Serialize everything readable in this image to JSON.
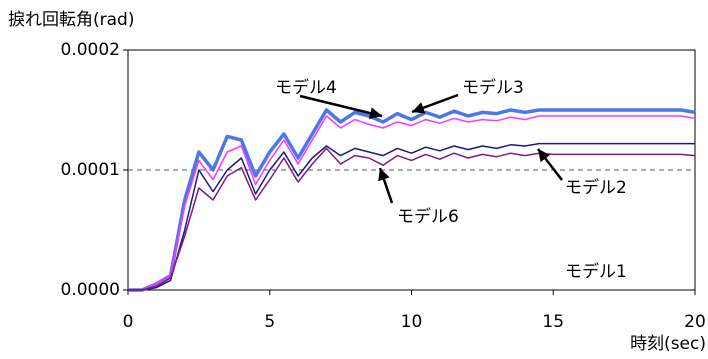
{
  "chart_data": {
    "type": "line",
    "title": "捩れ回転角(rad)",
    "x_label": "時刻(sec)",
    "x": [
      0,
      0.5,
      1,
      1.5,
      2,
      2.5,
      3,
      3.5,
      4,
      4.5,
      5,
      5.5,
      6,
      6.5,
      7,
      7.5,
      8,
      8.5,
      9,
      9.5,
      10,
      10.5,
      11,
      11.5,
      12,
      12.5,
      13,
      13.5,
      14,
      14.5,
      15,
      15.5,
      16,
      16.5,
      17,
      17.5,
      18,
      18.5,
      19,
      19.5,
      20
    ],
    "xlim": [
      0,
      20
    ],
    "xticks": [
      0,
      5,
      10,
      15,
      20
    ],
    "ylim": [
      0,
      0.0002
    ],
    "yticks": [
      {
        "value": 0,
        "label": "0.0000"
      },
      {
        "value": 0.0001,
        "label": "0.0001"
      },
      {
        "value": 0.0002,
        "label": "0.0002"
      }
    ],
    "reference_line": 0.0001,
    "series": [
      {
        "name": "モデル4",
        "color": "#4a78e8",
        "width": 3.5,
        "values": [
          0,
          0,
          5e-06,
          1.2e-05,
          7.5e-05,
          0.000115,
          0.0001,
          0.000128,
          0.000125,
          9.5e-05,
          0.000115,
          0.00013,
          0.00011,
          0.00013,
          0.00015,
          0.00014,
          0.000148,
          0.000145,
          0.00014,
          0.000147,
          0.000142,
          0.000148,
          0.000144,
          0.000149,
          0.000145,
          0.000148,
          0.000147,
          0.00015,
          0.000148,
          0.00015,
          0.00015,
          0.00015,
          0.00015,
          0.00015,
          0.00015,
          0.00015,
          0.00015,
          0.00015,
          0.00015,
          0.00015,
          0.000148
        ]
      },
      {
        "name": "モデル3",
        "color": "#ff33ff",
        "width": 1.5,
        "values": [
          0,
          0,
          5e-06,
          1.2e-05,
          7e-05,
          0.000108,
          9.2e-05,
          0.000115,
          0.00012,
          8.8e-05,
          0.000108,
          0.000125,
          0.000105,
          0.000125,
          0.000145,
          0.000135,
          0.000142,
          0.000138,
          0.000135,
          0.00014,
          0.000137,
          0.000142,
          0.000139,
          0.000143,
          0.00014,
          0.000142,
          0.000141,
          0.000144,
          0.000142,
          0.000145,
          0.000145,
          0.000145,
          0.000145,
          0.000145,
          0.000145,
          0.000145,
          0.000145,
          0.000145,
          0.000145,
          0.000145,
          0.000143
        ]
      },
      {
        "name": "モデル2",
        "color": "#1a1a80",
        "width": 1.5,
        "values": [
          0,
          0,
          2e-06,
          8e-06,
          5e-05,
          0.0001,
          8.2e-05,
          0.0001,
          0.00011,
          8e-05,
          0.0001,
          0.000115,
          9.5e-05,
          0.00011,
          0.00012,
          0.000112,
          0.000118,
          0.000115,
          0.000112,
          0.000118,
          0.000114,
          0.000119,
          0.000116,
          0.00012,
          0.000117,
          0.00012,
          0.000118,
          0.000121,
          0.00012,
          0.000122,
          0.000122,
          0.000122,
          0.000122,
          0.000122,
          0.000122,
          0.000122,
          0.000122,
          0.000122,
          0.000122,
          0.000122,
          0.000122
        ]
      },
      {
        "name": "モデル6",
        "color": "#801a80",
        "width": 1.5,
        "values": [
          0,
          0,
          3e-06,
          1e-05,
          4.5e-05,
          8.5e-05,
          7.5e-05,
          9.5e-05,
          0.000102,
          7.5e-05,
          9.2e-05,
          0.00011,
          9e-05,
          0.000105,
          0.000118,
          0.000105,
          0.000112,
          0.00011,
          0.000104,
          0.000112,
          0.000108,
          0.000113,
          0.000109,
          0.000114,
          0.00011,
          0.000113,
          0.000111,
          0.000114,
          0.000112,
          0.000114,
          0.000113,
          0.000113,
          0.000113,
          0.000113,
          0.000113,
          0.000113,
          0.000113,
          0.000113,
          0.000113,
          0.000113,
          0.000112
        ]
      }
    ],
    "annotations": [
      "モデル1"
    ]
  }
}
